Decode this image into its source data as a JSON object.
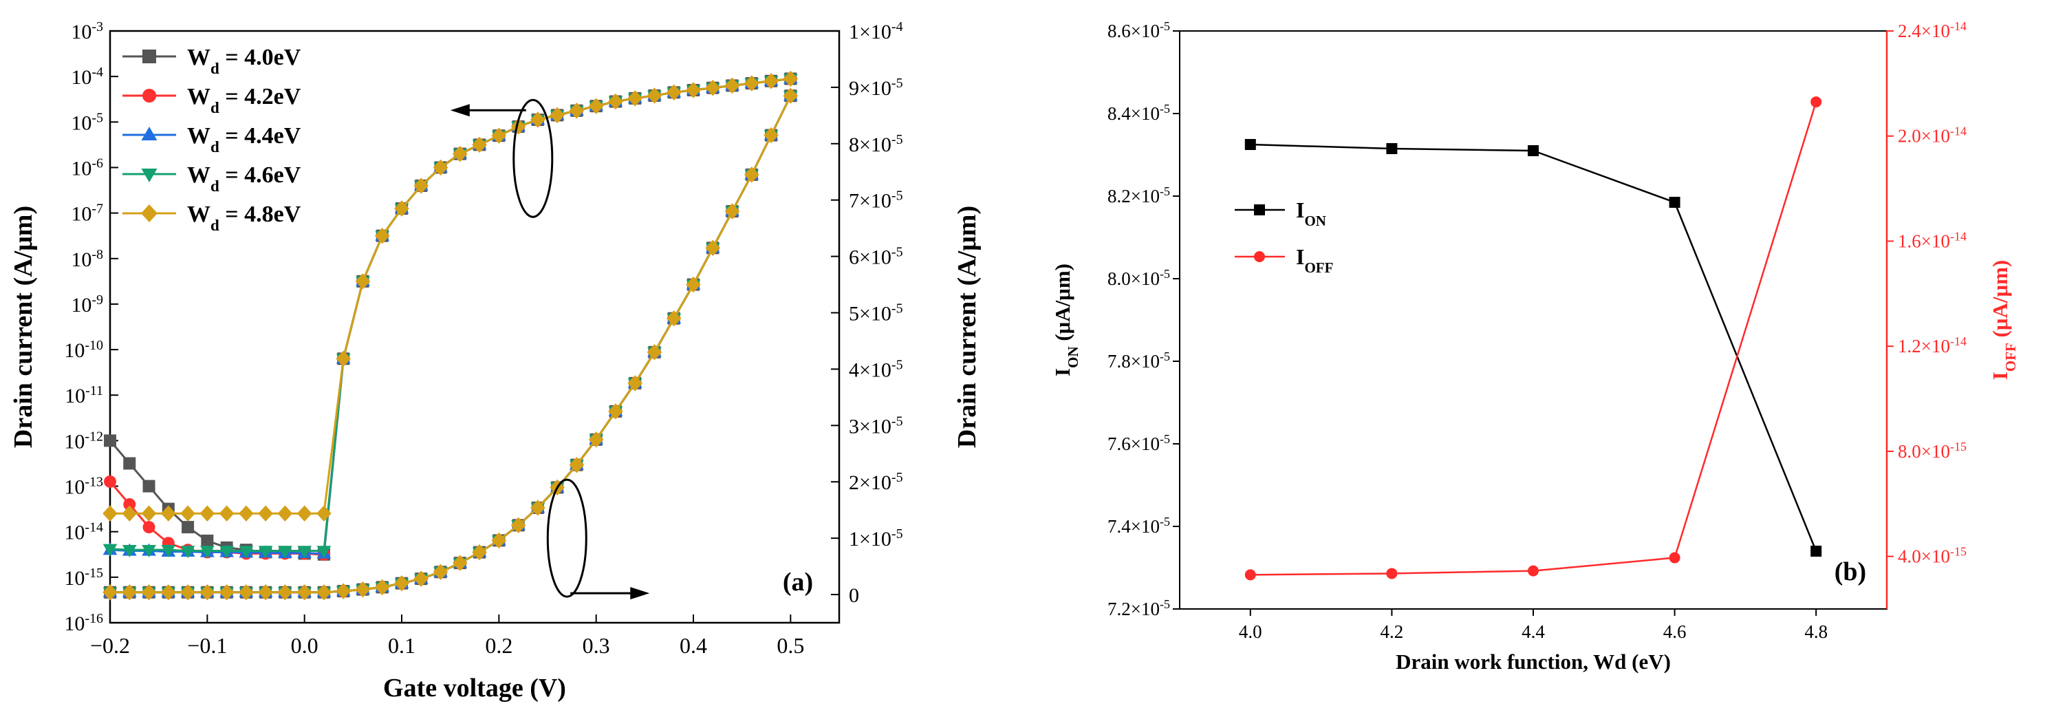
{
  "chart_data": [
    {
      "type": "line",
      "panel_label": "(a)",
      "xlabel": "Gate voltage (V)",
      "ylabel_left": "Drain current (A/μm)",
      "ylabel_right": "Drain current (A/μm)",
      "xlim": [
        -0.2,
        0.55
      ],
      "ylim_left_log": [
        -16,
        -3
      ],
      "ylim_right": [
        -5e-06,
        0.0001
      ],
      "x_ticks": [
        -0.2,
        -0.1,
        0.0,
        0.1,
        0.2,
        0.3,
        0.4,
        0.5
      ],
      "x_tick_labels": [
        "−0.2",
        "−0.1",
        "0.0",
        "0.1",
        "0.2",
        "0.3",
        "0.4",
        "0.5"
      ],
      "y_left_ticks": [
        {
          "exp": -3,
          "mantissa": "10",
          "sup": "-3"
        },
        {
          "exp": -4,
          "mantissa": "10",
          "sup": "-4"
        },
        {
          "exp": -5,
          "mantissa": "10",
          "sup": "-5"
        },
        {
          "exp": -6,
          "mantissa": "10",
          "sup": "-6"
        },
        {
          "exp": -7,
          "mantissa": "10",
          "sup": "-7"
        },
        {
          "exp": -8,
          "mantissa": "10",
          "sup": "-8"
        },
        {
          "exp": -9,
          "mantissa": "10",
          "sup": "-9"
        },
        {
          "exp": -10,
          "mantissa": "10",
          "sup": "-10"
        },
        {
          "exp": -11,
          "mantissa": "10",
          "sup": "-11"
        },
        {
          "exp": -12,
          "mantissa": "10",
          "sup": "-12"
        },
        {
          "exp": -13,
          "mantissa": "10",
          "sup": "-13"
        },
        {
          "exp": -14,
          "mantissa": "10",
          "sup": "-14"
        },
        {
          "exp": -15,
          "mantissa": "10",
          "sup": "-15"
        },
        {
          "exp": -16,
          "mantissa": "10",
          "sup": "-16"
        }
      ],
      "y_right_ticks": [
        {
          "value": 0,
          "mantissa": "0",
          "sup": ""
        },
        {
          "value": 1e-05,
          "mantissa": "1×10",
          "sup": "-5"
        },
        {
          "value": 2e-05,
          "mantissa": "2×10",
          "sup": "-5"
        },
        {
          "value": 3e-05,
          "mantissa": "3×10",
          "sup": "-5"
        },
        {
          "value": 4e-05,
          "mantissa": "4×10",
          "sup": "-5"
        },
        {
          "value": 5e-05,
          "mantissa": "5×10",
          "sup": "-5"
        },
        {
          "value": 6e-05,
          "mantissa": "6×10",
          "sup": "-5"
        },
        {
          "value": 7e-05,
          "mantissa": "7×10",
          "sup": "-5"
        },
        {
          "value": 8e-05,
          "mantissa": "8×10",
          "sup": "-5"
        },
        {
          "value": 9e-05,
          "mantissa": "9×10",
          "sup": "-5"
        },
        {
          "value": 0.0001,
          "mantissa": "1×10",
          "sup": "-4"
        }
      ],
      "x": [
        -0.2,
        -0.18,
        -0.16,
        -0.14,
        -0.12,
        -0.1,
        -0.08,
        -0.06,
        -0.04,
        -0.02,
        0.0,
        0.02,
        0.04,
        0.06,
        0.08,
        0.1,
        0.12,
        0.14,
        0.16,
        0.18,
        0.2,
        0.22,
        0.24,
        0.26,
        0.28,
        0.3,
        0.32,
        0.34,
        0.36,
        0.38,
        0.4,
        0.42,
        0.44,
        0.46,
        0.48,
        0.5
      ],
      "series": [
        {
          "name": "W",
          "subscript": "d",
          "suffix": " = 4.0eV",
          "color": "#555555",
          "marker": "square",
          "log_values": [
            -12,
            -12.5,
            -13,
            -13.5,
            -13.9,
            -14.2,
            -14.35,
            -14.4,
            -14.45,
            -14.45,
            -14.48,
            -14.5,
            -10.2,
            -8.5,
            -7.5,
            -6.9,
            -6.4,
            -6.0,
            -5.7,
            -5.5,
            -5.3,
            -5.1,
            -4.95,
            -4.85,
            -4.75,
            -4.65,
            -4.55,
            -4.48,
            -4.42,
            -4.35,
            -4.3,
            -4.25,
            -4.2,
            -4.15,
            -4.1,
            -4.05
          ],
          "linear_values": [
            4e-07,
            4e-07,
            4e-07,
            4e-07,
            4e-07,
            4e-07,
            4e-07,
            4e-07,
            4e-07,
            4e-07,
            4e-07,
            4e-07,
            6e-07,
            9e-07,
            1.3e-06,
            2e-06,
            2.8e-06,
            4e-06,
            5.6e-06,
            7.5e-06,
            9.6e-06,
            1.23e-05,
            1.54e-05,
            1.9e-05,
            2.3e-05,
            2.75e-05,
            3.25e-05,
            3.75e-05,
            4.3e-05,
            4.9e-05,
            5.5e-05,
            6.15e-05,
            6.8e-05,
            7.45e-05,
            8.15e-05,
            8.85e-05
          ]
        },
        {
          "name": "W",
          "subscript": "d",
          "suffix": " = 4.2eV",
          "color": "#ff3030",
          "marker": "circle",
          "log_values": [
            -12.9,
            -13.4,
            -13.9,
            -14.25,
            -14.4,
            -14.45,
            -14.45,
            -14.48,
            -14.48,
            -14.48,
            -14.48,
            -14.5,
            -10.2,
            -8.5,
            -7.5,
            -6.9,
            -6.4,
            -6.0,
            -5.7,
            -5.5,
            -5.3,
            -5.1,
            -4.95,
            -4.85,
            -4.75,
            -4.65,
            -4.55,
            -4.48,
            -4.42,
            -4.35,
            -4.3,
            -4.25,
            -4.2,
            -4.15,
            -4.1,
            -4.05
          ],
          "linear_values": [
            4e-07,
            4e-07,
            4e-07,
            4e-07,
            4e-07,
            4e-07,
            4e-07,
            4e-07,
            4e-07,
            4e-07,
            4e-07,
            4e-07,
            6e-07,
            9e-07,
            1.3e-06,
            2e-06,
            2.8e-06,
            4e-06,
            5.6e-06,
            7.5e-06,
            9.6e-06,
            1.23e-05,
            1.54e-05,
            1.9e-05,
            2.3e-05,
            2.75e-05,
            3.25e-05,
            3.75e-05,
            4.3e-05,
            4.9e-05,
            5.5e-05,
            6.15e-05,
            6.8e-05,
            7.45e-05,
            8.15e-05,
            8.85e-05
          ]
        },
        {
          "name": "W",
          "subscript": "d",
          "suffix": " = 4.4eV",
          "color": "#1f6fe0",
          "marker": "triangle-up",
          "log_values": [
            -14.4,
            -14.42,
            -14.42,
            -14.44,
            -14.44,
            -14.45,
            -14.45,
            -14.46,
            -14.46,
            -14.47,
            -14.47,
            -14.48,
            -10.2,
            -8.5,
            -7.5,
            -6.9,
            -6.4,
            -6.0,
            -5.7,
            -5.5,
            -5.3,
            -5.1,
            -4.95,
            -4.85,
            -4.75,
            -4.65,
            -4.55,
            -4.48,
            -4.42,
            -4.35,
            -4.3,
            -4.25,
            -4.2,
            -4.15,
            -4.1,
            -4.05
          ],
          "linear_values": [
            4e-07,
            4e-07,
            4e-07,
            4e-07,
            4e-07,
            4e-07,
            4e-07,
            4e-07,
            4e-07,
            4e-07,
            4e-07,
            4e-07,
            6e-07,
            9e-07,
            1.3e-06,
            2e-06,
            2.8e-06,
            4e-06,
            5.6e-06,
            7.5e-06,
            9.6e-06,
            1.23e-05,
            1.54e-05,
            1.9e-05,
            2.3e-05,
            2.75e-05,
            3.25e-05,
            3.75e-05,
            4.3e-05,
            4.9e-05,
            5.5e-05,
            6.15e-05,
            6.8e-05,
            7.45e-05,
            8.15e-05,
            8.85e-05
          ]
        },
        {
          "name": "W",
          "subscript": "d",
          "suffix": " = 4.6eV",
          "color": "#14a070",
          "marker": "triangle-down",
          "log_values": [
            -14.38,
            -14.4,
            -14.4,
            -14.4,
            -14.42,
            -14.42,
            -14.42,
            -14.42,
            -14.42,
            -14.42,
            -14.42,
            -14.42,
            -10.2,
            -8.5,
            -7.5,
            -6.9,
            -6.4,
            -6.0,
            -5.7,
            -5.5,
            -5.3,
            -5.1,
            -4.95,
            -4.85,
            -4.75,
            -4.65,
            -4.55,
            -4.48,
            -4.42,
            -4.35,
            -4.3,
            -4.25,
            -4.2,
            -4.15,
            -4.1,
            -4.05
          ],
          "linear_values": [
            4e-07,
            4e-07,
            4e-07,
            4e-07,
            4e-07,
            4e-07,
            4e-07,
            4e-07,
            4e-07,
            4e-07,
            4e-07,
            4e-07,
            6e-07,
            9e-07,
            1.3e-06,
            2e-06,
            2.8e-06,
            4e-06,
            5.6e-06,
            7.5e-06,
            9.6e-06,
            1.23e-05,
            1.54e-05,
            1.9e-05,
            2.3e-05,
            2.75e-05,
            3.25e-05,
            3.75e-05,
            4.3e-05,
            4.9e-05,
            5.5e-05,
            6.15e-05,
            6.8e-05,
            7.45e-05,
            8.15e-05,
            8.85e-05
          ]
        },
        {
          "name": "W",
          "subscript": "d",
          "suffix": " = 4.8eV",
          "color": "#d4a017",
          "marker": "diamond",
          "log_values": [
            -13.6,
            -13.6,
            -13.6,
            -13.6,
            -13.6,
            -13.6,
            -13.6,
            -13.6,
            -13.6,
            -13.6,
            -13.6,
            -13.6,
            -10.2,
            -8.5,
            -7.5,
            -6.9,
            -6.4,
            -6.0,
            -5.7,
            -5.5,
            -5.3,
            -5.1,
            -4.95,
            -4.85,
            -4.75,
            -4.65,
            -4.55,
            -4.48,
            -4.42,
            -4.35,
            -4.3,
            -4.25,
            -4.2,
            -4.15,
            -4.1,
            -4.05
          ],
          "linear_values": [
            4e-07,
            4e-07,
            4e-07,
            4e-07,
            4e-07,
            4e-07,
            4e-07,
            4e-07,
            4e-07,
            4e-07,
            4e-07,
            4e-07,
            6e-07,
            9e-07,
            1.3e-06,
            2e-06,
            2.8e-06,
            4e-06,
            5.6e-06,
            7.5e-06,
            9.6e-06,
            1.23e-05,
            1.54e-05,
            1.9e-05,
            2.3e-05,
            2.75e-05,
            3.25e-05,
            3.75e-05,
            4.3e-05,
            4.9e-05,
            5.5e-05,
            6.15e-05,
            6.8e-05,
            7.45e-05,
            8.15e-05,
            8.85e-05
          ]
        }
      ],
      "annotations": [
        {
          "type": "ellipse-arrow",
          "target_axis": "left",
          "direction": "left",
          "x": 0.235,
          "y_log": -5.8
        },
        {
          "type": "ellipse-arrow",
          "target_axis": "right",
          "direction": "right",
          "x": 0.27,
          "y_linear": 1e-05
        }
      ],
      "legend": "top-left"
    },
    {
      "type": "line",
      "panel_label": "(b)",
      "xlabel": "Drain work function, Wd (eV)",
      "ylabel_left_main": "I",
      "ylabel_left_sub": "ON",
      "ylabel_left_unit": " (μA/μm)",
      "ylabel_right_main": "I",
      "ylabel_right_sub": "OFF",
      "ylabel_right_unit": " (μA/μm)",
      "xlim": [
        3.9,
        4.9
      ],
      "ylim_left": [
        7.2e-05,
        8.6e-05
      ],
      "ylim_right": [
        2e-15,
        2.4e-14
      ],
      "x_ticks": [
        4.0,
        4.2,
        4.4,
        4.6,
        4.8
      ],
      "x_tick_labels": [
        "4.0",
        "4.2",
        "4.4",
        "4.6",
        "4.8"
      ],
      "y_left_ticks": [
        {
          "value": 7.2e-05,
          "mantissa": "7.2×10",
          "sup": "-5"
        },
        {
          "value": 7.4e-05,
          "mantissa": "7.4×10",
          "sup": "-5"
        },
        {
          "value": 7.6e-05,
          "mantissa": "7.6×10",
          "sup": "-5"
        },
        {
          "value": 7.8e-05,
          "mantissa": "7.8×10",
          "sup": "-5"
        },
        {
          "value": 8e-05,
          "mantissa": "8.0×10",
          "sup": "-5"
        },
        {
          "value": 8.2e-05,
          "mantissa": "8.2×10",
          "sup": "-5"
        },
        {
          "value": 8.4e-05,
          "mantissa": "8.4×10",
          "sup": "-5"
        },
        {
          "value": 8.6e-05,
          "mantissa": "8.6×10",
          "sup": "-5"
        }
      ],
      "y_right_ticks": [
        {
          "value": 4e-15,
          "mantissa": "4.0×10",
          "sup": "-15"
        },
        {
          "value": 8e-15,
          "mantissa": "8.0×10",
          "sup": "-15"
        },
        {
          "value": 1.2e-14,
          "mantissa": "1.2×10",
          "sup": "-14"
        },
        {
          "value": 1.6e-14,
          "mantissa": "1.6×10",
          "sup": "-14"
        },
        {
          "value": 2e-14,
          "mantissa": "2.0×10",
          "sup": "-14"
        },
        {
          "value": 2.4e-14,
          "mantissa": "2.4×10",
          "sup": "-14"
        }
      ],
      "x": [
        4.0,
        4.2,
        4.4,
        4.6,
        4.8
      ],
      "series": [
        {
          "name": "I",
          "subscript": "ON",
          "axis": "left",
          "color": "#000000",
          "marker": "square",
          "values": [
            8.325e-05,
            8.315e-05,
            8.31e-05,
            8.185e-05,
            7.34e-05
          ]
        },
        {
          "name": "I",
          "subscript": "OFF",
          "axis": "right",
          "color": "#ff2a2a",
          "marker": "circle",
          "values": [
            3.3e-15,
            3.35e-15,
            3.45e-15,
            3.95e-15,
            2.13e-14
          ]
        }
      ],
      "legend": "upper-left"
    }
  ]
}
